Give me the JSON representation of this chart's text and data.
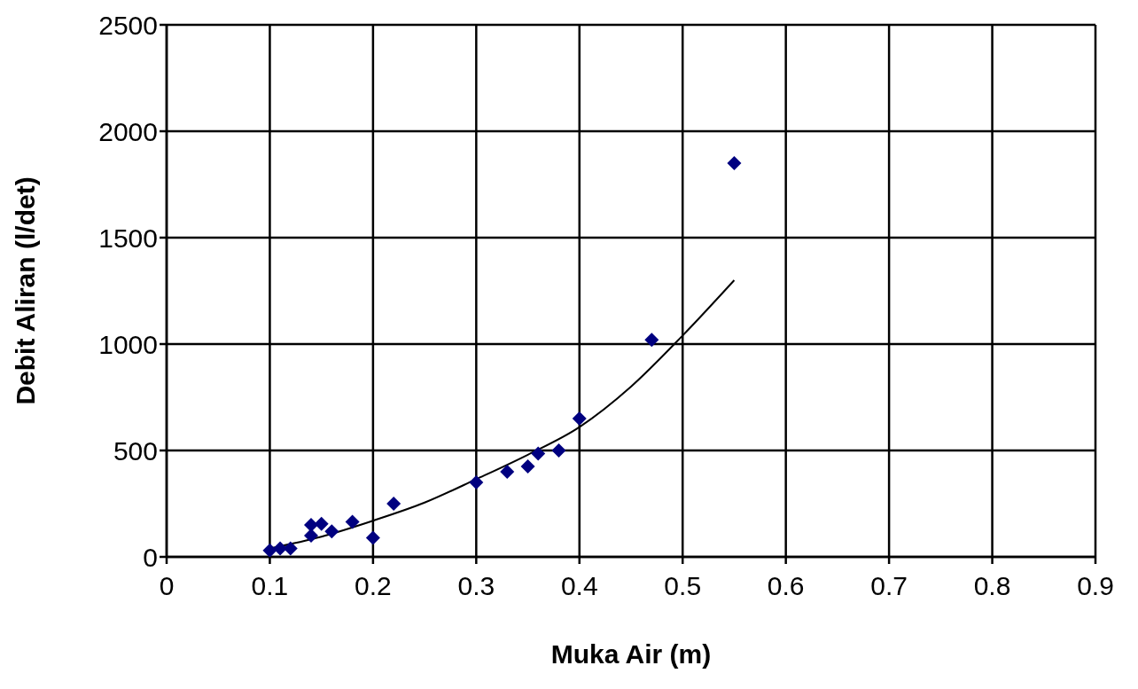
{
  "chart_data": {
    "type": "scatter",
    "xlabel": "Muka Air (m)",
    "ylabel": "Debit Aliran (l/det)",
    "xlim": [
      0,
      0.9
    ],
    "xticks": [
      0,
      0.1,
      0.2,
      0.3,
      0.4,
      0.5,
      0.6,
      0.7,
      0.8,
      0.9
    ],
    "ylim": [
      0,
      2500
    ],
    "yticks": [
      0,
      500,
      1000,
      1500,
      2000,
      2500
    ],
    "grid": true,
    "legend": false,
    "marker": "diamond",
    "series": [
      {
        "type": "scatter",
        "color": "#000080",
        "x": [
          0.1,
          0.11,
          0.12,
          0.14,
          0.14,
          0.15,
          0.16,
          0.18,
          0.2,
          0.22,
          0.3,
          0.33,
          0.35,
          0.36,
          0.38,
          0.4,
          0.47,
          0.55
        ],
        "values": [
          30,
          40,
          40,
          150,
          100,
          155,
          120,
          165,
          90,
          250,
          350,
          400,
          425,
          485,
          500,
          650,
          1020,
          1850
        ]
      },
      {
        "type": "line",
        "color": "#000000",
        "marker": "none",
        "line_style": "solid",
        "x": [
          0.1,
          0.15,
          0.2,
          0.25,
          0.3,
          0.35,
          0.4,
          0.45,
          0.5,
          0.55
        ],
        "values": [
          40,
          95,
          170,
          255,
          365,
          480,
          610,
          800,
          1040,
          1300
        ]
      }
    ]
  }
}
